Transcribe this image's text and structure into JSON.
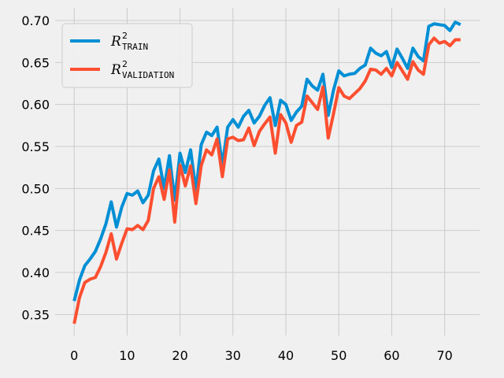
{
  "chart_data": {
    "type": "line",
    "title": "",
    "xlabel": "",
    "ylabel": "",
    "xlim": [
      -3.6,
      76.6
    ],
    "ylim": [
      0.325,
      0.715
    ],
    "xticks": [
      0,
      10,
      20,
      30,
      40,
      50,
      60,
      70
    ],
    "yticks": [
      0.35,
      0.4,
      0.45,
      0.5,
      0.55,
      0.6,
      0.65,
      0.7
    ],
    "grid": true,
    "legend_position": "upper-left",
    "x": [
      0,
      1,
      2,
      3,
      4,
      5,
      6,
      7,
      8,
      9,
      10,
      11,
      12,
      13,
      14,
      15,
      16,
      17,
      18,
      19,
      20,
      21,
      22,
      23,
      24,
      25,
      26,
      27,
      28,
      29,
      30,
      31,
      32,
      33,
      34,
      35,
      36,
      37,
      38,
      39,
      40,
      41,
      42,
      43,
      44,
      45,
      46,
      47,
      48,
      49,
      50,
      51,
      52,
      53,
      54,
      55,
      56,
      57,
      58,
      59,
      60,
      61,
      62,
      63,
      64,
      65,
      66,
      67,
      68,
      69,
      70,
      71,
      72,
      73
    ],
    "series": [
      {
        "name": "R",
        "legend_sup": "2",
        "legend_sub": "TRAIN",
        "color": "#008fd5",
        "values": [
          0.366,
          0.391,
          0.408,
          0.416,
          0.425,
          0.44,
          0.458,
          0.484,
          0.454,
          0.478,
          0.494,
          0.492,
          0.497,
          0.483,
          0.492,
          0.521,
          0.535,
          0.5,
          0.539,
          0.486,
          0.542,
          0.519,
          0.546,
          0.497,
          0.552,
          0.567,
          0.563,
          0.573,
          0.528,
          0.573,
          0.582,
          0.573,
          0.586,
          0.593,
          0.578,
          0.586,
          0.599,
          0.608,
          0.575,
          0.605,
          0.6,
          0.581,
          0.591,
          0.598,
          0.63,
          0.622,
          0.617,
          0.636,
          0.587,
          0.617,
          0.64,
          0.634,
          0.636,
          0.637,
          0.643,
          0.647,
          0.667,
          0.661,
          0.658,
          0.663,
          0.644,
          0.666,
          0.655,
          0.643,
          0.667,
          0.657,
          0.652,
          0.693,
          0.696,
          0.695,
          0.694,
          0.688,
          0.698,
          0.695
        ]
      },
      {
        "name": "R",
        "legend_sup": "2",
        "legend_sub": "VALIDATION",
        "color": "#fc4f30",
        "values": [
          0.339,
          0.37,
          0.388,
          0.392,
          0.394,
          0.407,
          0.424,
          0.446,
          0.416,
          0.435,
          0.452,
          0.451,
          0.456,
          0.451,
          0.462,
          0.5,
          0.514,
          0.487,
          0.522,
          0.46,
          0.528,
          0.503,
          0.527,
          0.482,
          0.527,
          0.546,
          0.54,
          0.559,
          0.514,
          0.559,
          0.561,
          0.557,
          0.558,
          0.572,
          0.551,
          0.568,
          0.577,
          0.585,
          0.542,
          0.588,
          0.578,
          0.555,
          0.575,
          0.579,
          0.61,
          0.602,
          0.594,
          0.621,
          0.56,
          0.589,
          0.62,
          0.61,
          0.607,
          0.613,
          0.619,
          0.628,
          0.642,
          0.641,
          0.636,
          0.643,
          0.634,
          0.65,
          0.64,
          0.63,
          0.651,
          0.641,
          0.636,
          0.671,
          0.679,
          0.673,
          0.675,
          0.67,
          0.677,
          0.677
        ]
      }
    ]
  }
}
